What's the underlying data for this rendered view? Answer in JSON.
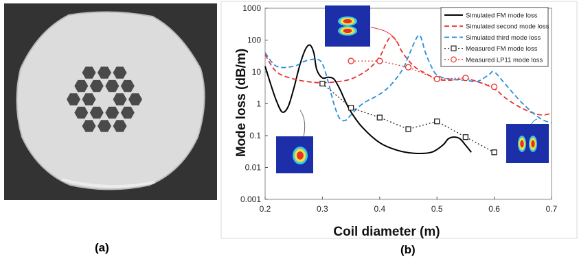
{
  "panels": {
    "a_label": "(a)",
    "b_label": "(b)"
  },
  "chart_data": {
    "type": "line",
    "xlabel": "Coil diameter (m)",
    "ylabel": "Mode loss  (dB/m)",
    "xlim": [
      0.2,
      0.7
    ],
    "ylim": [
      0.001,
      1000
    ],
    "yscale": "log",
    "grid": false,
    "legend_position": "top-right",
    "x_ticks": [
      "0.2",
      "0.3",
      "0.4",
      "0.5",
      "0.6",
      "0.7"
    ],
    "y_ticks": [
      "0.001",
      "0.01",
      "0.1",
      "1",
      "10",
      "100",
      "1000"
    ],
    "series": [
      {
        "name": "Simulated FM mode loss",
        "style": "solid",
        "color": "#000000",
        "x": [
          0.2,
          0.21,
          0.22,
          0.23,
          0.24,
          0.25,
          0.26,
          0.27,
          0.278,
          0.285,
          0.29,
          0.3,
          0.31,
          0.32,
          0.33,
          0.34,
          0.35,
          0.37,
          0.4,
          0.43,
          0.46,
          0.49,
          0.51,
          0.52,
          0.53,
          0.54,
          0.55,
          0.56
        ],
        "y": [
          15,
          4,
          1.2,
          0.55,
          0.8,
          3,
          15,
          50,
          70,
          40,
          12,
          6.5,
          6.8,
          6,
          3,
          1.2,
          0.55,
          0.18,
          0.06,
          0.035,
          0.028,
          0.03,
          0.05,
          0.08,
          0.09,
          0.08,
          0.05,
          0.03
        ]
      },
      {
        "name": "Simulated second mode loss",
        "style": "dashed",
        "color": "#e8302c",
        "x": [
          0.2,
          0.22,
          0.25,
          0.28,
          0.3,
          0.32,
          0.35,
          0.38,
          0.4,
          0.41,
          0.42,
          0.43,
          0.44,
          0.46,
          0.48,
          0.5,
          0.52,
          0.55,
          0.57,
          0.6,
          0.62,
          0.65,
          0.68,
          0.7
        ],
        "y": [
          35,
          10,
          6,
          4.8,
          4.6,
          4.8,
          6,
          12,
          30,
          70,
          130,
          90,
          40,
          15,
          9,
          6,
          5.5,
          6,
          5,
          3,
          1.5,
          0.7,
          0.45,
          0.5
        ]
      },
      {
        "name": "Simulated third mode loss",
        "style": "dashed",
        "color": "#2a8fd8",
        "x": [
          0.2,
          0.22,
          0.25,
          0.27,
          0.29,
          0.3,
          0.31,
          0.32,
          0.33,
          0.34,
          0.35,
          0.37,
          0.4,
          0.42,
          0.44,
          0.45,
          0.46,
          0.47,
          0.48,
          0.49,
          0.5,
          0.52,
          0.55,
          0.57,
          0.59,
          0.6,
          0.62,
          0.65,
          0.68,
          0.7
        ],
        "y": [
          40,
          15,
          15,
          22,
          25,
          18,
          5,
          1,
          0.35,
          0.3,
          0.45,
          1,
          2,
          4,
          12,
          30,
          80,
          140,
          40,
          15,
          8,
          6,
          5.5,
          5,
          8,
          10,
          4,
          1,
          0.35,
          0.25
        ]
      },
      {
        "name": "Measured FM mode loss",
        "style": "dotted",
        "color": "#222222",
        "marker": "square",
        "x": [
          0.3,
          0.35,
          0.4,
          0.45,
          0.5,
          0.55,
          0.6
        ],
        "y": [
          4.3,
          0.75,
          0.37,
          0.16,
          0.28,
          0.09,
          0.03
        ]
      },
      {
        "name": "Measured LP11 mode loss",
        "style": "dotted",
        "color": "#e8302c",
        "marker": "circle",
        "x": [
          0.35,
          0.4,
          0.45,
          0.5,
          0.55,
          0.6
        ],
        "y": [
          22,
          22,
          14,
          6,
          6.5,
          3.4
        ]
      }
    ]
  }
}
